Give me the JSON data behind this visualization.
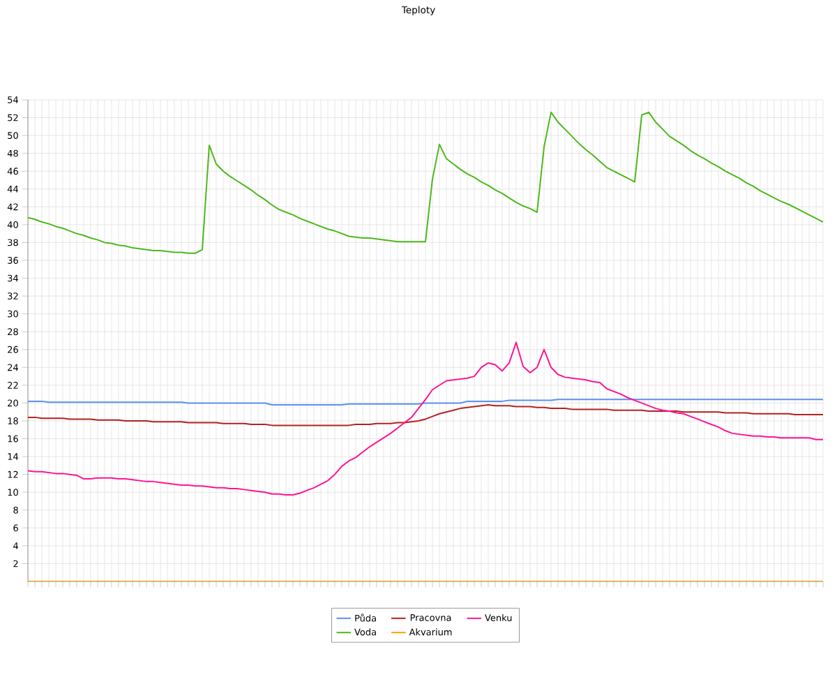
{
  "chart_data": {
    "type": "line",
    "title": "Teploty",
    "categories": [
      null,
      null,
      null,
      null,
      null,
      null,
      null,
      null,
      null,
      null,
      null,
      null,
      null,
      null,
      null,
      null,
      null,
      null,
      null,
      null,
      null,
      null,
      null,
      null,
      null,
      null,
      null,
      null,
      null,
      null,
      null,
      null,
      null,
      null,
      null,
      null,
      null,
      null,
      null,
      null,
      null,
      null,
      null,
      null,
      null,
      null,
      null,
      null,
      null,
      null,
      null,
      null,
      null,
      null,
      null,
      null,
      null,
      null,
      null,
      null,
      null,
      null,
      null,
      null,
      null,
      null,
      null,
      null,
      null,
      null,
      null,
      null,
      null,
      null,
      null,
      null,
      null,
      null,
      null,
      null,
      null,
      null,
      null,
      null,
      null,
      null,
      null,
      null,
      null,
      null,
      null,
      null,
      null,
      null,
      null,
      null,
      null,
      null,
      null,
      null,
      null,
      null,
      null,
      null,
      null,
      null,
      null,
      null,
      null,
      null,
      null,
      null,
      null,
      null,
      null
    ],
    "ylim": [
      0,
      54
    ],
    "yticks": [
      2,
      4,
      6,
      8,
      10,
      12,
      14,
      16,
      18,
      20,
      22,
      24,
      26,
      28,
      30,
      32,
      34,
      36,
      38,
      40,
      42,
      44,
      46,
      48,
      50,
      52,
      54
    ],
    "grid": true,
    "legend": "bottom",
    "marker": "none",
    "line_style": "solid",
    "series": [
      {
        "name": "Půda",
        "color": "#5b8ff0",
        "values": [
          20.2,
          20.2,
          20.2,
          20.1,
          20.1,
          20.1,
          20.1,
          20.1,
          20.1,
          20.1,
          20.1,
          20.1,
          20.1,
          20.1,
          20.1,
          20.1,
          20.1,
          20.1,
          20.1,
          20.1,
          20.1,
          20.1,
          20.1,
          20.0,
          20.0,
          20.0,
          20.0,
          20.0,
          20.0,
          20.0,
          20.0,
          20.0,
          20.0,
          20.0,
          20.0,
          19.8,
          19.8,
          19.8,
          19.8,
          19.8,
          19.8,
          19.8,
          19.8,
          19.8,
          19.8,
          19.8,
          19.9,
          19.9,
          19.9,
          19.9,
          19.9,
          19.9,
          19.9,
          19.9,
          19.9,
          19.9,
          19.9,
          20.0,
          20.0,
          20.0,
          20.0,
          20.0,
          20.0,
          20.2,
          20.2,
          20.2,
          20.2,
          20.2,
          20.2,
          20.3,
          20.3,
          20.3,
          20.3,
          20.3,
          20.3,
          20.3,
          20.4,
          20.4,
          20.4,
          20.4,
          20.4,
          20.4,
          20.4,
          20.4,
          20.4,
          20.4,
          20.4,
          20.4,
          20.4,
          20.4,
          20.4,
          20.4,
          20.4,
          20.4,
          20.4,
          20.4,
          20.4,
          20.4,
          20.4,
          20.4,
          20.4,
          20.4,
          20.4,
          20.4,
          20.4,
          20.4,
          20.4,
          20.4,
          20.4,
          20.4,
          20.4,
          20.4,
          20.4,
          20.4,
          20.4
        ]
      },
      {
        "name": "Pracovna",
        "color": "#b22222",
        "values": [
          18.4,
          18.4,
          18.3,
          18.3,
          18.3,
          18.3,
          18.2,
          18.2,
          18.2,
          18.2,
          18.1,
          18.1,
          18.1,
          18.1,
          18.0,
          18.0,
          18.0,
          18.0,
          17.9,
          17.9,
          17.9,
          17.9,
          17.9,
          17.8,
          17.8,
          17.8,
          17.8,
          17.8,
          17.7,
          17.7,
          17.7,
          17.7,
          17.6,
          17.6,
          17.6,
          17.5,
          17.5,
          17.5,
          17.5,
          17.5,
          17.5,
          17.5,
          17.5,
          17.5,
          17.5,
          17.5,
          17.5,
          17.6,
          17.6,
          17.6,
          17.7,
          17.7,
          17.7,
          17.8,
          17.8,
          17.9,
          18.0,
          18.2,
          18.5,
          18.8,
          19.0,
          19.2,
          19.4,
          19.5,
          19.6,
          19.7,
          19.8,
          19.7,
          19.7,
          19.7,
          19.6,
          19.6,
          19.6,
          19.5,
          19.5,
          19.4,
          19.4,
          19.4,
          19.3,
          19.3,
          19.3,
          19.3,
          19.3,
          19.3,
          19.2,
          19.2,
          19.2,
          19.2,
          19.2,
          19.1,
          19.1,
          19.1,
          19.1,
          19.1,
          19.0,
          19.0,
          19.0,
          19.0,
          19.0,
          19.0,
          18.9,
          18.9,
          18.9,
          18.9,
          18.8,
          18.8,
          18.8,
          18.8,
          18.8,
          18.8,
          18.7,
          18.7,
          18.7,
          18.7,
          18.7
        ]
      },
      {
        "name": "Venku",
        "color": "#ff1493",
        "values": [
          12.4,
          12.3,
          12.3,
          12.2,
          12.1,
          12.1,
          12.0,
          11.9,
          11.5,
          11.5,
          11.6,
          11.6,
          11.6,
          11.5,
          11.5,
          11.4,
          11.3,
          11.2,
          11.2,
          11.1,
          11.0,
          10.9,
          10.8,
          10.8,
          10.7,
          10.7,
          10.6,
          10.5,
          10.5,
          10.4,
          10.4,
          10.3,
          10.2,
          10.1,
          10.0,
          9.8,
          9.8,
          9.7,
          9.7,
          9.9,
          10.2,
          10.5,
          10.9,
          11.3,
          12.0,
          12.9,
          13.5,
          13.9,
          14.5,
          15.1,
          15.6,
          16.1,
          16.6,
          17.2,
          17.8,
          18.4,
          19.4,
          20.4,
          21.5,
          22.0,
          22.5,
          22.6,
          22.7,
          22.8,
          23.0,
          24.0,
          24.5,
          24.3,
          23.6,
          24.5,
          26.8,
          24.1,
          23.4,
          24.0,
          26.0,
          24.0,
          23.2,
          22.9,
          22.8,
          22.7,
          22.6,
          22.4,
          22.3,
          21.6,
          21.3,
          21.0,
          20.6,
          20.3,
          20.0,
          19.7,
          19.4,
          19.2,
          19.1,
          18.9,
          18.8,
          18.5,
          18.2,
          17.9,
          17.6,
          17.3,
          16.9,
          16.6,
          16.5,
          16.4,
          16.3,
          16.3,
          16.2,
          16.2,
          16.1,
          16.1,
          16.1,
          16.1,
          16.1,
          15.9,
          15.9
        ]
      },
      {
        "name": "Voda",
        "color": "#4cb81b",
        "values": [
          40.8,
          40.6,
          40.3,
          40.1,
          39.8,
          39.6,
          39.3,
          39.0,
          38.8,
          38.5,
          38.3,
          38.0,
          37.9,
          37.7,
          37.6,
          37.4,
          37.3,
          37.2,
          37.1,
          37.1,
          37.0,
          36.9,
          36.9,
          36.8,
          36.8,
          37.2,
          48.9,
          46.8,
          46.0,
          45.4,
          44.9,
          44.4,
          43.9,
          43.3,
          42.8,
          42.2,
          41.7,
          41.4,
          41.1,
          40.7,
          40.4,
          40.1,
          39.8,
          39.5,
          39.3,
          39.0,
          38.7,
          38.6,
          38.5,
          38.5,
          38.4,
          38.3,
          38.2,
          38.1,
          38.1,
          38.1,
          38.1,
          38.1,
          45.1,
          49.0,
          47.4,
          46.8,
          46.2,
          45.7,
          45.3,
          44.8,
          44.4,
          43.9,
          43.5,
          43.0,
          42.5,
          42.1,
          41.8,
          41.4,
          48.7,
          52.6,
          51.5,
          50.7,
          49.9,
          49.1,
          48.4,
          47.8,
          47.1,
          46.4,
          46.0,
          45.6,
          45.2,
          44.8,
          52.3,
          52.6,
          51.5,
          50.7,
          49.9,
          49.4,
          48.9,
          48.3,
          47.8,
          47.4,
          46.9,
          46.5,
          46.0,
          45.6,
          45.2,
          44.7,
          44.3,
          43.8,
          43.4,
          43.0,
          42.6,
          42.3,
          41.9,
          41.5,
          41.1,
          40.7,
          40.3
        ]
      },
      {
        "name": "Akvarium",
        "color": "#f5a000",
        "values": [
          0,
          0,
          0,
          0,
          0,
          0,
          0,
          0,
          0,
          0,
          0,
          0,
          0,
          0,
          0,
          0,
          0,
          0,
          0,
          0,
          0,
          0,
          0,
          0,
          0,
          0,
          0,
          0,
          0,
          0,
          0,
          0,
          0,
          0,
          0,
          0,
          0,
          0,
          0,
          0,
          0,
          0,
          0,
          0,
          0,
          0,
          0,
          0,
          0,
          0,
          0,
          0,
          0,
          0,
          0,
          0,
          0,
          0,
          0,
          0,
          0,
          0,
          0,
          0,
          0,
          0,
          0,
          0,
          0,
          0,
          0,
          0,
          0,
          0,
          0,
          0,
          0,
          0,
          0,
          0,
          0,
          0,
          0,
          0,
          0,
          0,
          0,
          0,
          0,
          0,
          0,
          0,
          0,
          0,
          0,
          0,
          0,
          0,
          0,
          0,
          0,
          0,
          0,
          0,
          0,
          0,
          0,
          0,
          0,
          0,
          0,
          0,
          0,
          0,
          0
        ]
      }
    ]
  }
}
